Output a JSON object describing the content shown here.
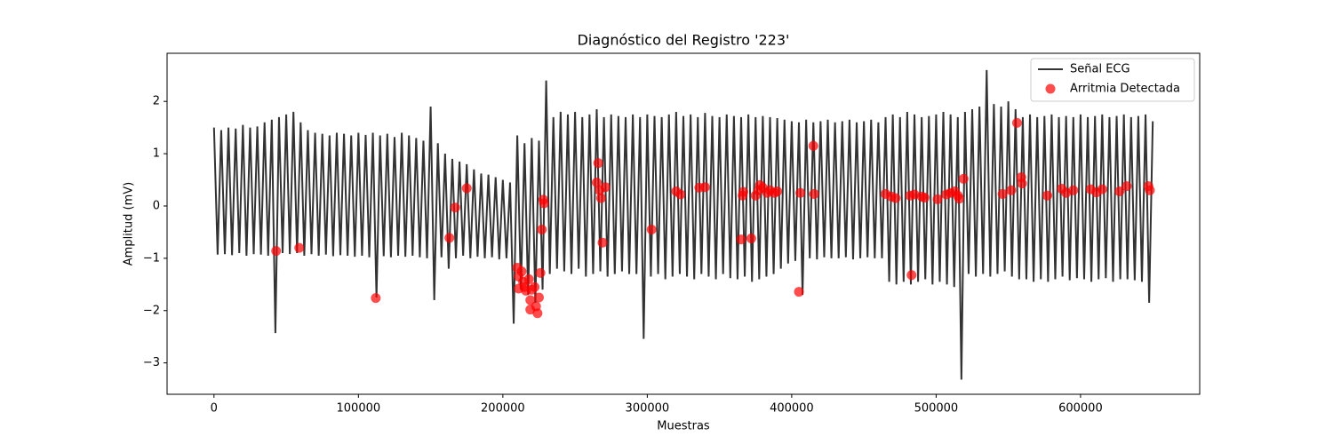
{
  "chart_data": {
    "type": "line",
    "title": "Diagnóstico del Registro '223'",
    "x_label": "Muestras",
    "y_label": "Amplitud (mV)",
    "xlim": [
      -32500,
      682500
    ],
    "ylim": [
      -3.6,
      2.92
    ],
    "xticks": [
      0,
      100000,
      200000,
      300000,
      400000,
      500000,
      600000
    ],
    "yticks": [
      {
        "value": -3,
        "label": "−3"
      },
      {
        "value": -2,
        "label": "−2"
      },
      {
        "value": -1,
        "label": "−1"
      },
      0,
      1,
      2
    ],
    "grid": false,
    "legend": "upper right",
    "series": [
      {
        "name": "Señal ECG",
        "type": "line",
        "color": "#333333",
        "x": [
          0,
          2500,
          5000,
          7500,
          10000,
          12500,
          15000,
          17500,
          20000,
          22500,
          25000,
          27500,
          30000,
          32500,
          35000,
          37500,
          40000,
          42500,
          45000,
          47500,
          50000,
          52500,
          55000,
          57500,
          60000,
          62500,
          65000,
          67500,
          70000,
          72500,
          75000,
          77500,
          80000,
          82500,
          85000,
          87500,
          90000,
          92500,
          95000,
          97500,
          100000,
          102500,
          105000,
          107500,
          110000,
          112500,
          115000,
          117500,
          120000,
          122500,
          125000,
          127500,
          130000,
          132500,
          135000,
          137500,
          140000,
          142500,
          145000,
          147500,
          150000,
          152500,
          155000,
          157500,
          160000,
          162500,
          165000,
          167500,
          170000,
          172500,
          175000,
          177500,
          180000,
          182500,
          185000,
          187500,
          190000,
          192500,
          195000,
          197500,
          200000,
          202500,
          205000,
          207500,
          210000,
          212500,
          215000,
          217500,
          220000,
          222500,
          225000,
          227500,
          230000,
          232500,
          235000,
          237500,
          240000,
          242500,
          245000,
          247500,
          250000,
          252500,
          255000,
          257500,
          260000,
          262500,
          265000,
          267500,
          270000,
          272500,
          275000,
          277500,
          280000,
          282500,
          285000,
          287500,
          290000,
          292500,
          295000,
          297500,
          300000,
          302500,
          305000,
          307500,
          310000,
          312500,
          315000,
          317500,
          320000,
          322500,
          325000,
          327500,
          330000,
          332500,
          335000,
          337500,
          340000,
          342500,
          345000,
          347500,
          350000,
          352500,
          355000,
          357500,
          360000,
          362500,
          365000,
          367500,
          370000,
          372500,
          375000,
          377500,
          380000,
          382500,
          385000,
          387500,
          390000,
          392500,
          395000,
          397500,
          400000,
          402500,
          405000,
          407500,
          410000,
          412500,
          415000,
          417500,
          420000,
          422500,
          425000,
          427500,
          430000,
          432500,
          435000,
          437500,
          440000,
          442500,
          445000,
          447500,
          450000,
          452500,
          455000,
          457500,
          460000,
          462500,
          465000,
          467500,
          470000,
          472500,
          475000,
          477500,
          480000,
          482500,
          485000,
          487500,
          490000,
          492500,
          495000,
          497500,
          500000,
          502500,
          505000,
          507500,
          510000,
          512500,
          515000,
          517500,
          520000,
          522500,
          525000,
          527500,
          530000,
          532500,
          535000,
          537500,
          540000,
          542500,
          545000,
          547500,
          550000,
          552500,
          555000,
          557500,
          560000,
          562500,
          565000,
          567500,
          570000,
          572500,
          575000,
          577500,
          580000,
          582500,
          585000,
          587500,
          590000,
          592500,
          595000,
          597500,
          600000,
          602500,
          605000,
          607500,
          610000,
          612500,
          615000,
          617500,
          620000,
          622500,
          625000,
          627500,
          630000,
          632500,
          635000,
          637500,
          640000,
          642500,
          645000,
          647500,
          650000
        ],
        "values": [
          1.5,
          -0.93,
          1.45,
          -0.92,
          1.5,
          -0.94,
          1.48,
          -0.9,
          1.55,
          -0.95,
          1.5,
          -0.92,
          1.52,
          -0.93,
          1.6,
          -0.95,
          1.65,
          -2.43,
          1.7,
          -0.9,
          1.75,
          -0.92,
          1.8,
          -0.9,
          1.6,
          -0.95,
          1.45,
          -0.92,
          1.4,
          -0.95,
          1.38,
          -0.93,
          1.35,
          -0.96,
          1.4,
          -0.94,
          1.38,
          -0.95,
          1.35,
          -0.97,
          1.4,
          -0.95,
          1.36,
          -0.98,
          1.4,
          -1.75,
          1.35,
          -0.96,
          1.38,
          -0.98,
          1.32,
          -0.95,
          1.4,
          -0.97,
          1.35,
          -0.95,
          1.3,
          -0.98,
          1.25,
          -1.0,
          1.9,
          -1.8,
          1.2,
          -0.98,
          1.0,
          -1.2,
          0.9,
          -1.0,
          0.85,
          -0.95,
          0.8,
          -1.0,
          0.7,
          -0.97,
          0.62,
          -1.0,
          0.6,
          -0.98,
          0.55,
          -1.02,
          0.5,
          -1.0,
          0.45,
          -2.25,
          1.35,
          -1.6,
          1.2,
          -1.7,
          1.3,
          -1.85,
          1.25,
          -1.6,
          2.4,
          -1.3,
          1.7,
          -1.2,
          1.8,
          -1.25,
          1.75,
          -1.3,
          1.8,
          -1.2,
          1.7,
          -1.35,
          1.75,
          -1.3,
          1.85,
          -1.25,
          1.7,
          -1.35,
          1.75,
          -1.3,
          1.72,
          -1.25,
          1.7,
          -1.3,
          1.75,
          -1.3,
          1.7,
          -2.54,
          1.75,
          -1.35,
          1.72,
          -1.3,
          1.7,
          -1.4,
          1.75,
          -1.35,
          1.8,
          -1.3,
          1.72,
          -1.35,
          1.75,
          -1.4,
          1.7,
          -1.3,
          1.78,
          -1.35,
          1.72,
          -1.4,
          1.7,
          -1.3,
          1.75,
          -1.38,
          1.72,
          -1.4,
          1.7,
          -1.35,
          1.75,
          -1.45,
          1.7,
          -1.4,
          1.72,
          -1.35,
          1.7,
          -1.3,
          1.68,
          -1.2,
          1.65,
          -1.1,
          1.62,
          -1.05,
          1.6,
          -1.7,
          1.65,
          -1.0,
          1.6,
          -1.02,
          1.62,
          -0.98,
          1.65,
          -1.0,
          1.6,
          -1.0,
          1.62,
          -0.98,
          1.65,
          -1.02,
          1.6,
          -1.0,
          1.62,
          -0.98,
          1.65,
          -1.0,
          1.6,
          -1.0,
          1.7,
          -1.45,
          1.75,
          -1.5,
          1.7,
          -1.45,
          1.8,
          -1.5,
          1.75,
          -1.45,
          1.7,
          -1.4,
          1.72,
          -1.5,
          1.75,
          -1.45,
          1.8,
          -1.5,
          1.75,
          -1.55,
          1.7,
          -3.32,
          1.8,
          -1.3,
          1.85,
          -1.35,
          1.9,
          -1.3,
          2.6,
          -1.35,
          1.95,
          -1.3,
          1.9,
          -1.25,
          2.0,
          -1.35,
          1.85,
          -1.4,
          1.7,
          -1.4,
          1.75,
          -1.45,
          1.7,
          -1.4,
          1.72,
          -1.45,
          1.75,
          -1.4,
          1.7,
          -1.35,
          1.72,
          -1.42,
          1.7,
          -1.38,
          1.75,
          -1.4,
          1.7,
          -1.45,
          1.72,
          -1.4,
          1.75,
          -1.38,
          1.7,
          -1.45,
          1.72,
          -1.4,
          1.75,
          -1.4,
          1.7,
          -1.42,
          1.72,
          -1.45,
          1.75,
          -1.85,
          1.62
        ]
      },
      {
        "name": "Arritmia Detectada",
        "type": "scatter",
        "color": "#ff0000",
        "alpha": 0.7,
        "x": [
          43000,
          59000,
          112000,
          163000,
          167000,
          175000,
          210000,
          211000,
          211000,
          213000,
          214000,
          215000,
          216000,
          218000,
          219000,
          219000,
          220000,
          222000,
          223000,
          224000,
          225000,
          226000,
          227000,
          228000,
          228500,
          265000,
          266000,
          267000,
          268000,
          269000,
          271000,
          303000,
          320000,
          323000,
          336000,
          340000,
          365000,
          366000,
          366500,
          372000,
          375000,
          377000,
          378000,
          380000,
          383000,
          385000,
          388000,
          390000,
          405000,
          406000,
          415000,
          415500,
          465000,
          469000,
          472000,
          482000,
          483000,
          485000,
          490000,
          492000,
          501000,
          507000,
          510000,
          513000,
          515000,
          516000,
          519000,
          546000,
          552000,
          556000,
          559000,
          559500,
          577000,
          587000,
          590000,
          595000,
          607000,
          611000,
          615000,
          627000,
          632000,
          647000,
          648000
        ],
        "values": [
          -0.86,
          -0.8,
          -1.76,
          -0.61,
          -0.03,
          0.34,
          -1.18,
          -1.35,
          -1.58,
          -1.25,
          -1.45,
          -1.55,
          -1.62,
          -1.4,
          -1.8,
          -1.98,
          -1.6,
          -1.55,
          -1.92,
          -2.05,
          -1.75,
          -1.28,
          -0.45,
          0.12,
          0.05,
          0.45,
          0.82,
          0.3,
          0.15,
          -0.7,
          0.36,
          -0.45,
          0.28,
          0.22,
          0.35,
          0.36,
          -0.64,
          0.2,
          0.27,
          -0.62,
          0.2,
          0.3,
          0.4,
          0.35,
          0.25,
          0.3,
          0.25,
          0.28,
          -1.64,
          0.25,
          1.15,
          0.23,
          0.23,
          0.18,
          0.15,
          0.2,
          -1.32,
          0.22,
          0.18,
          0.16,
          0.13,
          0.22,
          0.25,
          0.28,
          0.2,
          0.14,
          0.52,
          0.23,
          0.3,
          1.59,
          0.55,
          0.43,
          0.2,
          0.33,
          0.25,
          0.3,
          0.32,
          0.26,
          0.32,
          0.28,
          0.38,
          0.38,
          0.3
        ]
      }
    ]
  }
}
